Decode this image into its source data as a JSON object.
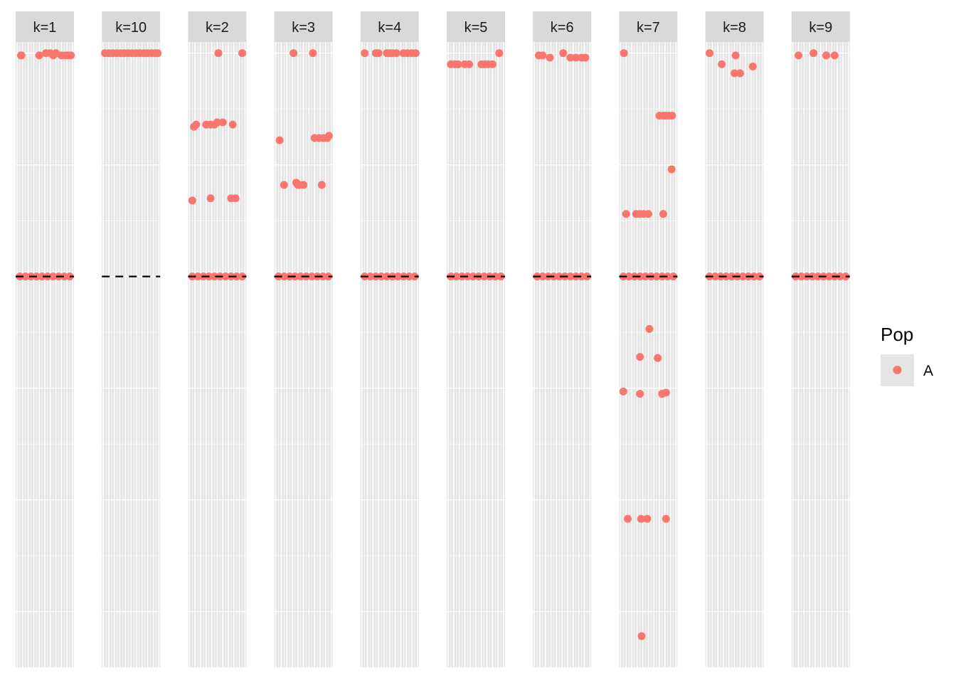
{
  "chart_data": {
    "type": "scatter",
    "facet_labels": [
      "k=1",
      "k=10",
      "k=2",
      "k=3",
      "k=4",
      "k=5",
      "k=6",
      "k=7",
      "k=8",
      "k=9"
    ],
    "ylim": [
      -1.75,
      1.05
    ],
    "y_gridlines": [
      -1.5,
      -1,
      -0.5,
      0,
      0.5,
      1
    ],
    "x_gridlines_per_panel": 10,
    "reference_line": {
      "y": 0,
      "style": "dashed",
      "color": "#000000"
    },
    "point_color": "#F8766D",
    "panel_background": "#E5E5E5",
    "strip_background": "#D9D9D9",
    "legend": {
      "title": "Pop",
      "items": [
        {
          "label": "A",
          "color": "#F8766D"
        }
      ],
      "position": "right"
    },
    "series": [
      {
        "facet": "k=1",
        "points": [
          [
            0.07,
            0.99
          ],
          [
            0.08,
            0.99
          ],
          [
            0.4,
            0.99
          ],
          [
            0.52,
            1.0
          ],
          [
            0.6,
            1.0
          ],
          [
            0.65,
            0.99
          ],
          [
            0.7,
            1.0
          ],
          [
            0.8,
            0.99
          ],
          [
            0.87,
            0.99
          ],
          [
            0.92,
            0.99
          ],
          [
            0.97,
            0.99
          ],
          [
            0.05,
            0
          ],
          [
            0.15,
            0
          ],
          [
            0.25,
            0
          ],
          [
            0.35,
            0
          ],
          [
            0.45,
            0
          ],
          [
            0.55,
            0
          ],
          [
            0.65,
            0
          ],
          [
            0.75,
            0
          ],
          [
            0.85,
            0
          ],
          [
            0.95,
            0
          ]
        ]
      },
      {
        "facet": "k=10",
        "points": [
          [
            0.03,
            1.0
          ],
          [
            0.1,
            1.0
          ],
          [
            0.17,
            1.0
          ],
          [
            0.24,
            1.0
          ],
          [
            0.31,
            1.0
          ],
          [
            0.38,
            1.0
          ],
          [
            0.45,
            1.0
          ],
          [
            0.52,
            1.0
          ],
          [
            0.59,
            1.0
          ],
          [
            0.66,
            1.0
          ],
          [
            0.73,
            1.0
          ],
          [
            0.8,
            1.0
          ],
          [
            0.87,
            1.0
          ],
          [
            0.94,
            1.0
          ],
          [
            0.98,
            1.0
          ]
        ]
      },
      {
        "facet": "k=2",
        "points": [
          [
            0.52,
            1.0
          ],
          [
            0.95,
            1.0
          ],
          [
            0.08,
            0.67
          ],
          [
            0.12,
            0.68
          ],
          [
            0.3,
            0.68
          ],
          [
            0.38,
            0.68
          ],
          [
            0.45,
            0.68
          ],
          [
            0.5,
            0.69
          ],
          [
            0.6,
            0.69
          ],
          [
            0.78,
            0.68
          ],
          [
            0.05,
            0.34
          ],
          [
            0.38,
            0.35
          ],
          [
            0.75,
            0.35
          ],
          [
            0.83,
            0.35
          ],
          [
            0.05,
            0
          ],
          [
            0.15,
            0
          ],
          [
            0.25,
            0
          ],
          [
            0.35,
            0
          ],
          [
            0.45,
            0
          ],
          [
            0.55,
            0
          ],
          [
            0.65,
            0
          ],
          [
            0.75,
            0
          ],
          [
            0.85,
            0
          ],
          [
            0.95,
            0
          ]
        ]
      },
      {
        "facet": "k=3",
        "points": [
          [
            0.32,
            1.0
          ],
          [
            0.67,
            1.0
          ],
          [
            0.07,
            0.61
          ],
          [
            0.7,
            0.62
          ],
          [
            0.78,
            0.62
          ],
          [
            0.86,
            0.62
          ],
          [
            0.93,
            0.62
          ],
          [
            0.96,
            0.63
          ],
          [
            0.15,
            0.41
          ],
          [
            0.37,
            0.42
          ],
          [
            0.4,
            0.41
          ],
          [
            0.43,
            0.41
          ],
          [
            0.5,
            0.41
          ],
          [
            0.83,
            0.41
          ],
          [
            0.05,
            0
          ],
          [
            0.15,
            0
          ],
          [
            0.25,
            0
          ],
          [
            0.35,
            0
          ],
          [
            0.45,
            0
          ],
          [
            0.55,
            0
          ],
          [
            0.65,
            0
          ],
          [
            0.75,
            0
          ],
          [
            0.85,
            0
          ],
          [
            0.95,
            0
          ]
        ]
      },
      {
        "facet": "k=4",
        "points": [
          [
            0.05,
            1.0
          ],
          [
            0.25,
            1.0
          ],
          [
            0.3,
            1.0
          ],
          [
            0.45,
            1.0
          ],
          [
            0.5,
            1.0
          ],
          [
            0.55,
            1.0
          ],
          [
            0.62,
            1.0
          ],
          [
            0.75,
            1.0
          ],
          [
            0.82,
            1.0
          ],
          [
            0.9,
            1.0
          ],
          [
            0.97,
            1.0
          ],
          [
            0.05,
            0
          ],
          [
            0.15,
            0
          ],
          [
            0.25,
            0
          ],
          [
            0.35,
            0
          ],
          [
            0.45,
            0
          ],
          [
            0.55,
            0
          ],
          [
            0.65,
            0
          ],
          [
            0.75,
            0
          ],
          [
            0.85,
            0
          ],
          [
            0.95,
            0
          ]
        ]
      },
      {
        "facet": "k=5",
        "points": [
          [
            0.92,
            1.0
          ],
          [
            0.05,
            0.95
          ],
          [
            0.12,
            0.95
          ],
          [
            0.18,
            0.95
          ],
          [
            0.3,
            0.95
          ],
          [
            0.38,
            0.95
          ],
          [
            0.6,
            0.95
          ],
          [
            0.66,
            0.95
          ],
          [
            0.72,
            0.95
          ],
          [
            0.8,
            0.95
          ],
          [
            0.05,
            0
          ],
          [
            0.15,
            0
          ],
          [
            0.25,
            0
          ],
          [
            0.35,
            0
          ],
          [
            0.45,
            0
          ],
          [
            0.55,
            0
          ],
          [
            0.65,
            0
          ],
          [
            0.75,
            0
          ],
          [
            0.85,
            0
          ],
          [
            0.95,
            0
          ]
        ]
      },
      {
        "facet": "k=6",
        "points": [
          [
            0.52,
            1.0
          ],
          [
            0.08,
            0.99
          ],
          [
            0.15,
            0.99
          ],
          [
            0.28,
            0.98
          ],
          [
            0.65,
            0.98
          ],
          [
            0.75,
            0.98
          ],
          [
            0.85,
            0.98
          ],
          [
            0.92,
            0.98
          ],
          [
            0.05,
            0
          ],
          [
            0.15,
            0
          ],
          [
            0.25,
            0
          ],
          [
            0.35,
            0
          ],
          [
            0.45,
            0
          ],
          [
            0.55,
            0
          ],
          [
            0.65,
            0
          ],
          [
            0.75,
            0
          ],
          [
            0.85,
            0
          ],
          [
            0.95,
            0
          ]
        ]
      },
      {
        "facet": "k=7",
        "points": [
          [
            0.06,
            1.0
          ],
          [
            0.7,
            0.72
          ],
          [
            0.77,
            0.72
          ],
          [
            0.82,
            0.72
          ],
          [
            0.88,
            0.72
          ],
          [
            0.93,
            0.72
          ],
          [
            0.92,
            0.48
          ],
          [
            0.1,
            0.28
          ],
          [
            0.28,
            0.28
          ],
          [
            0.35,
            0.28
          ],
          [
            0.42,
            0.28
          ],
          [
            0.5,
            0.28
          ],
          [
            0.77,
            0.28
          ],
          [
            0.05,
            0
          ],
          [
            0.15,
            0
          ],
          [
            0.25,
            0
          ],
          [
            0.35,
            0
          ],
          [
            0.45,
            0
          ],
          [
            0.55,
            0
          ],
          [
            0.65,
            0
          ],
          [
            0.75,
            0
          ],
          [
            0.85,
            0
          ],
          [
            0.95,
            0
          ],
          [
            0.52,
            -0.235
          ],
          [
            0.35,
            -0.36
          ],
          [
            0.67,
            -0.365
          ],
          [
            0.05,
            -0.515
          ],
          [
            0.35,
            -0.525
          ],
          [
            0.75,
            -0.525
          ],
          [
            0.82,
            -0.52
          ],
          [
            0.13,
            -1.085
          ],
          [
            0.37,
            -1.085
          ],
          [
            0.48,
            -1.085
          ],
          [
            0.82,
            -1.085
          ],
          [
            0.38,
            -1.61
          ]
        ]
      },
      {
        "facet": "k=8",
        "points": [
          [
            0.05,
            1.0
          ],
          [
            0.52,
            0.99
          ],
          [
            0.27,
            0.95
          ],
          [
            0.5,
            0.91
          ],
          [
            0.6,
            0.91
          ],
          [
            0.83,
            0.94
          ],
          [
            0.05,
            0
          ],
          [
            0.15,
            0
          ],
          [
            0.25,
            0
          ],
          [
            0.35,
            0
          ],
          [
            0.45,
            0
          ],
          [
            0.55,
            0
          ],
          [
            0.65,
            0
          ],
          [
            0.75,
            0
          ],
          [
            0.85,
            0
          ],
          [
            0.95,
            0
          ]
        ]
      },
      {
        "facet": "k=9",
        "points": [
          [
            0.1,
            0.99
          ],
          [
            0.37,
            1.0
          ],
          [
            0.6,
            0.99
          ],
          [
            0.75,
            0.99
          ],
          [
            0.05,
            0
          ],
          [
            0.15,
            0
          ],
          [
            0.25,
            0
          ],
          [
            0.35,
            0
          ],
          [
            0.45,
            0
          ],
          [
            0.55,
            0
          ],
          [
            0.65,
            0
          ],
          [
            0.75,
            0
          ],
          [
            0.85,
            0
          ],
          [
            0.95,
            0
          ]
        ]
      }
    ]
  }
}
